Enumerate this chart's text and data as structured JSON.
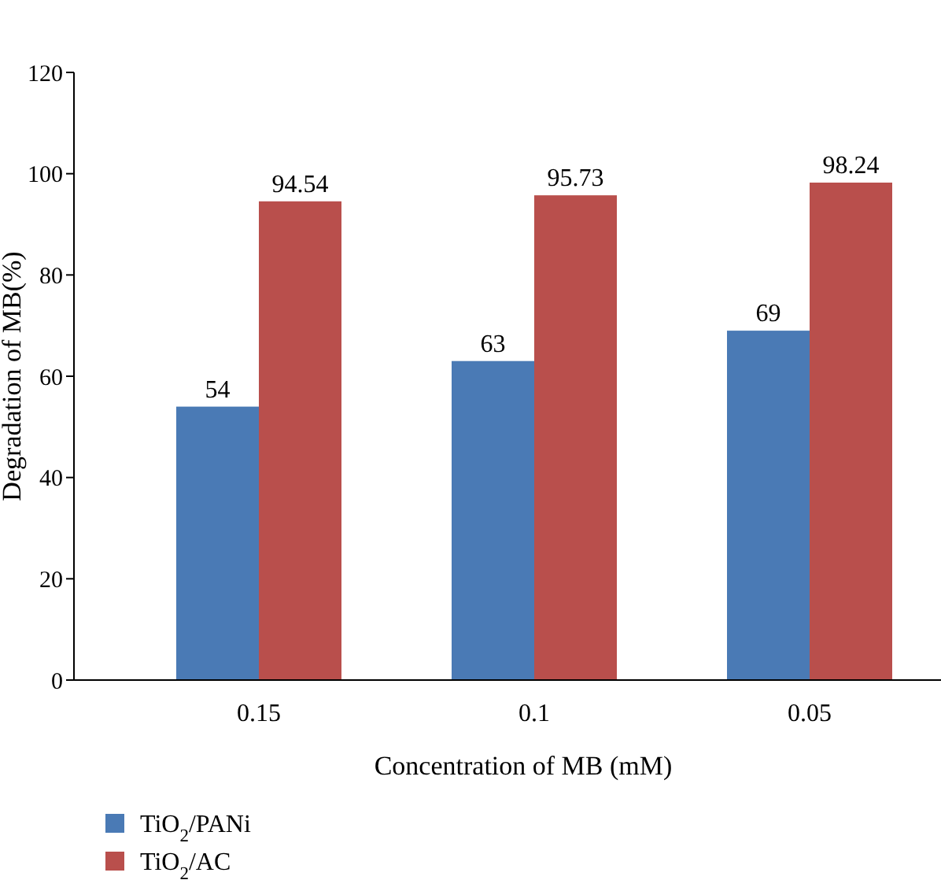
{
  "chart_data": {
    "type": "bar",
    "xlabel": "Concentration of MB (mM)",
    "ylabel": "Degradation of MB(%)",
    "categories": [
      "0.15",
      "0.1",
      "0.05"
    ],
    "series": [
      {
        "name": "TiO$_{2}$/PANi",
        "color": "#4a7ab5",
        "values": [
          54,
          63,
          69
        ]
      },
      {
        "name": "TiO$_{2}$/AC",
        "color": "#b94f4c",
        "values": [
          94.54,
          95.73,
          98.24
        ]
      }
    ],
    "ylim": [
      0,
      120
    ],
    "yticks": [
      0,
      20,
      40,
      60,
      80,
      100,
      120
    ],
    "grid": false,
    "legend": "bottom left",
    "data_labels": true
  }
}
